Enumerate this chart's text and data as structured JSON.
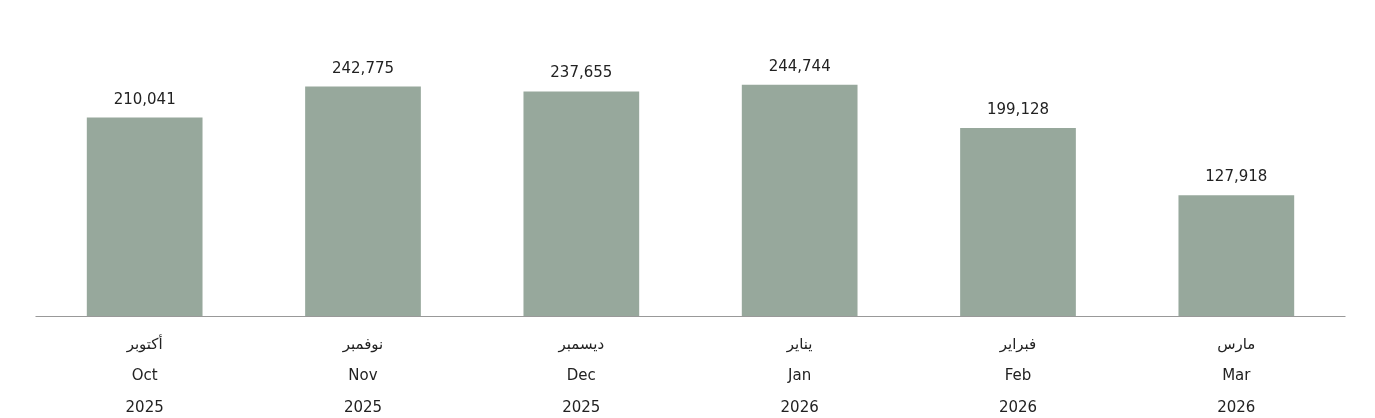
{
  "chart_data": {
    "type": "bar",
    "categories": [
      "أكتوبر\nOct\n2025",
      "نوفمبر\nNov\n2025",
      "ديسمبر\nDec\n2025",
      "يناير\nJan\n2026",
      "فبراير\nFeb\n2026",
      "مارس\nMar\n2026"
    ],
    "values": [
      210041,
      242775,
      237655,
      244744,
      199128,
      127918
    ],
    "color": "#97a89c",
    "value_labels": [
      "210,041",
      "242,775",
      "237,655",
      "244,744",
      "199,128",
      "127,918"
    ],
    "grid": false
  }
}
